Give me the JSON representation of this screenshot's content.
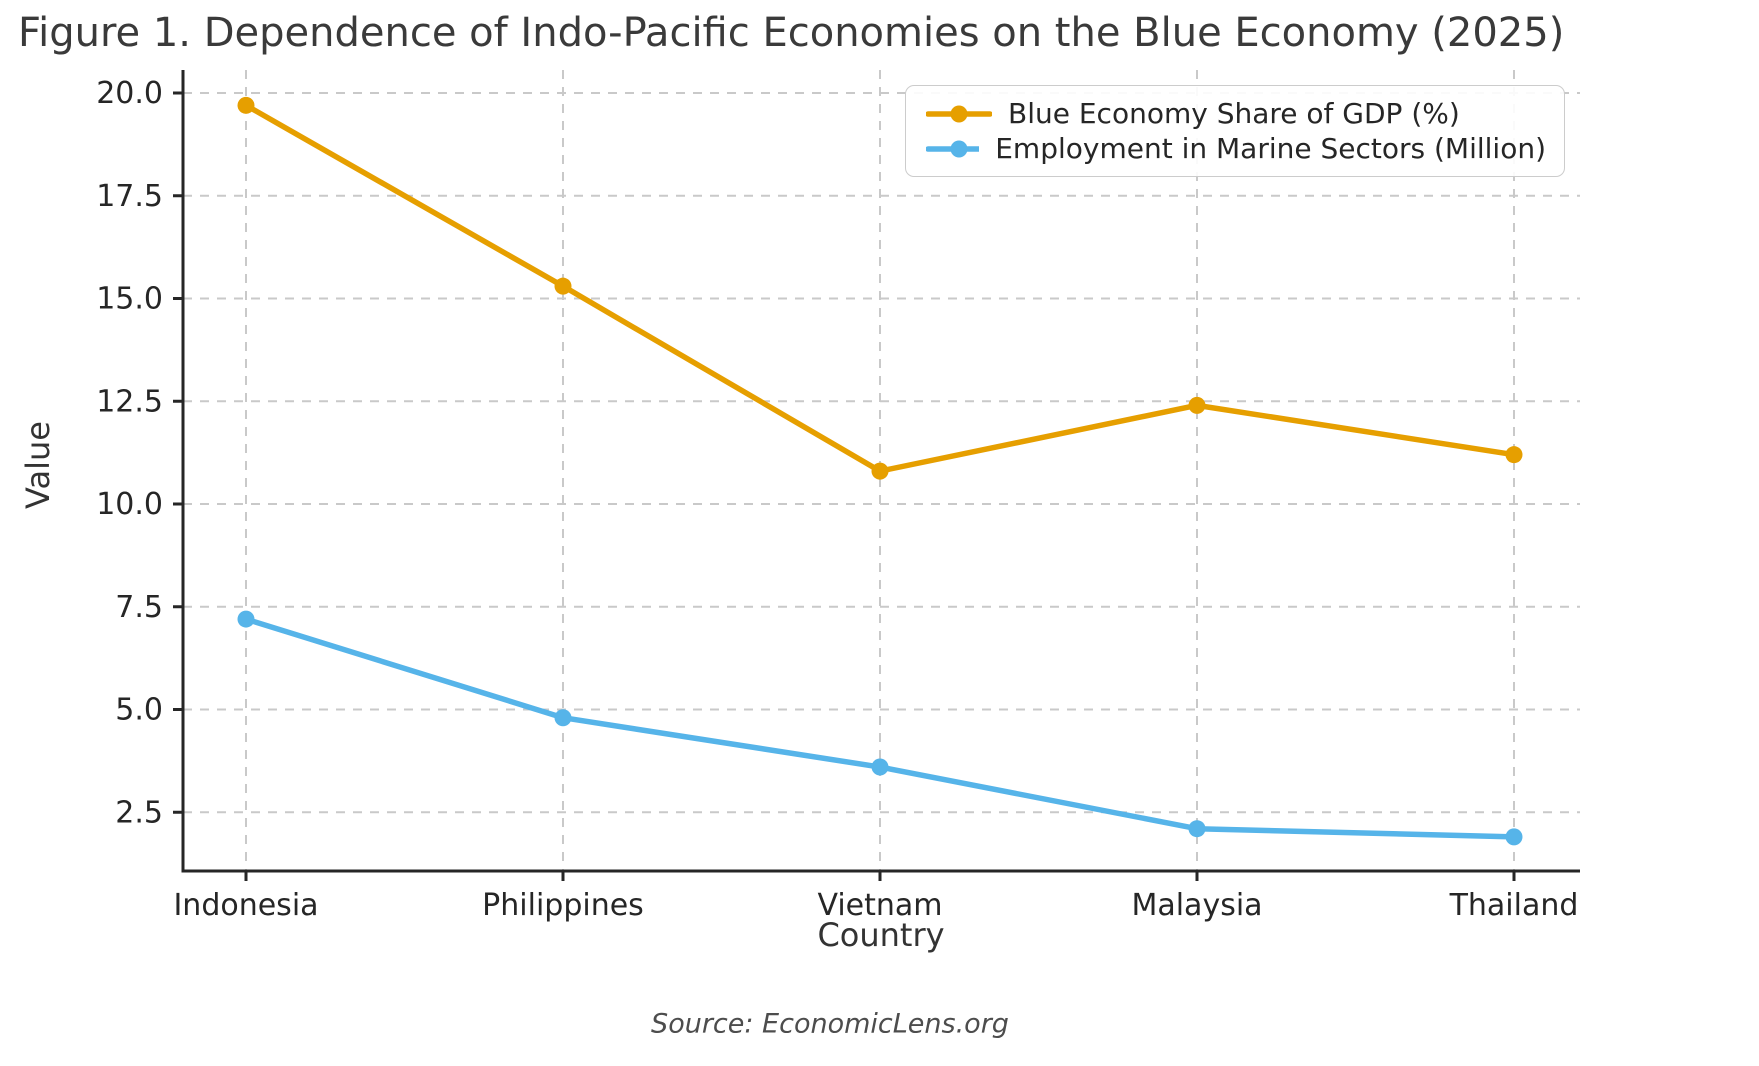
{
  "figure": {
    "title": "Figure 1. Dependence of Indo-Pacific Economies on the Blue Economy (2025)",
    "source_note": "Source: EconomicLens.org"
  },
  "chart_data": {
    "type": "line",
    "title": "Figure 1. Dependence of Indo-Pacific Economies on the Blue Economy (2025)",
    "xlabel": "Country",
    "ylabel": "Value",
    "categories": [
      "Indonesia",
      "Philippines",
      "Vietnam",
      "Malaysia",
      "Thailand"
    ],
    "series": [
      {
        "id": "gdp_share",
        "name": "Blue Economy Share of GDP (%)",
        "color": "#E69F00",
        "values": [
          19.7,
          15.3,
          10.8,
          12.4,
          11.2
        ]
      },
      {
        "id": "marine_employment",
        "name": "Employment in Marine Sectors (Million)",
        "color": "#56B4E9",
        "values": [
          7.2,
          4.8,
          3.6,
          2.1,
          1.9
        ]
      }
    ],
    "ylim": [
      1.1,
      20.4
    ],
    "yticks": [
      2.5,
      5.0,
      7.5,
      10.0,
      12.5,
      15.0,
      17.5,
      20.0
    ],
    "ytick_labels": [
      "2.5",
      "5.0",
      "7.5",
      "10.0",
      "12.5",
      "15.0",
      "17.5",
      "20.0"
    ],
    "grid": true,
    "grid_style": "dashed",
    "legend_position": "upper right",
    "marker": "circle",
    "source": "Source: EconomicLens.org",
    "colors": {
      "spine": "#262626",
      "tick_label": "#262626",
      "grid": "#c9c9c9",
      "title_text": "#3a3a3a",
      "axis_label_text": "#333333",
      "source_text": "#4d4d4d",
      "background": "#ffffff"
    }
  }
}
